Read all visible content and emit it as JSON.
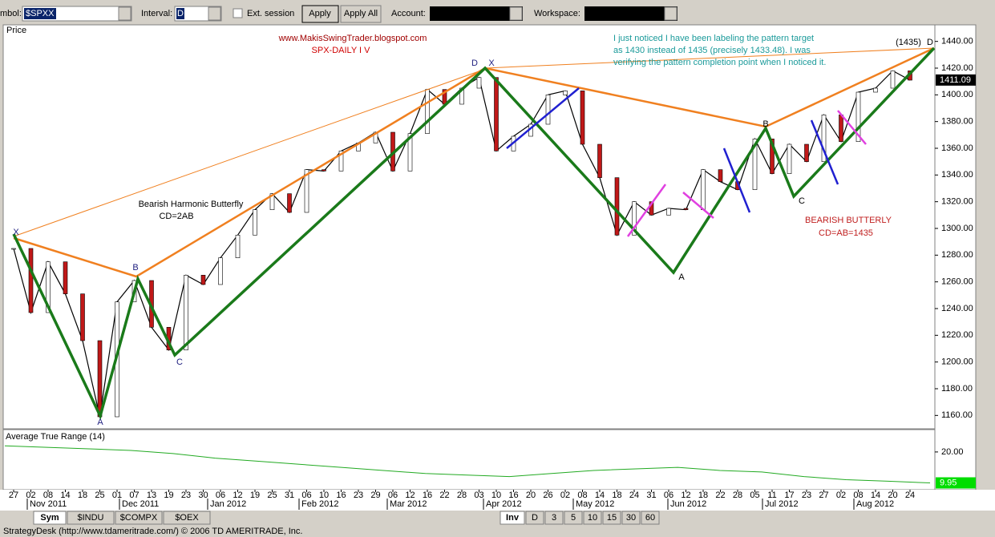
{
  "toolbar": {
    "symbol_label": "mbol:",
    "symbol": "$SPXX",
    "interval_label": "Interval:",
    "interval": "D",
    "ext_session": "Ext. session",
    "apply": "Apply",
    "apply_all": "Apply All",
    "account_label": "Account:",
    "workspace_label": "Workspace:"
  },
  "chart_data": {
    "type": "line",
    "title": "Price",
    "x": [
      "27",
      "02",
      "08",
      "14",
      "18",
      "25",
      "01",
      "07",
      "13",
      "19",
      "23",
      "30",
      "06",
      "12",
      "19",
      "25",
      "31",
      "06",
      "10",
      "16",
      "23",
      "29",
      "06",
      "12",
      "16",
      "22",
      "28",
      "03",
      "10",
      "16",
      "20",
      "26",
      "02",
      "08",
      "14",
      "18",
      "24",
      "31",
      "06",
      "12",
      "18",
      "22",
      "28",
      "05",
      "11",
      "17",
      "23",
      "27",
      "02",
      "08",
      "14",
      "20",
      "24"
    ],
    "months": [
      "Nov 2011",
      "Dec 2011",
      "Jan 2012",
      "Feb 2012",
      "Mar 2012",
      "Apr 2012",
      "May 2012",
      "Jun 2012",
      "Jul 2012",
      "Aug 2012"
    ],
    "series": [
      {
        "name": "SPX",
        "color": "#000000",
        "values": [
          1285,
          1237,
          1275,
          1251,
          1216,
          1159,
          1245,
          1261,
          1226,
          1209,
          1265,
          1258,
          1278,
          1295,
          1314,
          1326,
          1312,
          1344,
          1343,
          1358,
          1364,
          1372,
          1343,
          1371,
          1404,
          1393,
          1405,
          1413,
          1358,
          1369,
          1378,
          1400,
          1403,
          1363,
          1338,
          1295,
          1320,
          1310,
          1315,
          1314,
          1344,
          1335,
          1329,
          1367,
          1341,
          1363,
          1350,
          1385,
          1365,
          1402,
          1405,
          1418,
          1411
        ]
      }
    ],
    "ylim": [
      1150,
      1450
    ],
    "yticks": [
      {
        "value": 1160,
        "label": "1160.00"
      },
      {
        "value": 1180,
        "label": "1180.00"
      },
      {
        "value": 1200,
        "label": "1200.00"
      },
      {
        "value": 1220,
        "label": "1220.00"
      },
      {
        "value": 1240,
        "label": "1240.00"
      },
      {
        "value": 1260,
        "label": "1260.00"
      },
      {
        "value": 1280,
        "label": "1280.00"
      },
      {
        "value": 1300,
        "label": "1300.00"
      },
      {
        "value": 1320,
        "label": "1320.00"
      },
      {
        "value": 1340,
        "label": "1340.00"
      },
      {
        "value": 1360,
        "label": "1360.00"
      },
      {
        "value": 1380,
        "label": "1380.00"
      },
      {
        "value": 1400,
        "label": "1400.00"
      },
      {
        "value": 1420,
        "label": "1420.00"
      },
      {
        "value": 1440,
        "label": "1440.00"
      }
    ],
    "last_price": {
      "value": 1411.09,
      "label": "1411.09"
    },
    "annotations": {
      "site": "www.MakisSwingTrader.blogspot.com",
      "name": "SPX-DAILY I V",
      "note": [
        "I just noticed I have been labeling the pattern target",
        "as 1430 instead of 1435 (precisely 1433.48). I was",
        "verifying the pattern completion point when I noticed it."
      ],
      "pattern1": [
        "Bearish Harmonic Butterfly",
        "CD=2AB"
      ],
      "pattern2": [
        "BEARISH BUTTERLY",
        "CD=AB=1435"
      ],
      "target": "(1435)",
      "points": [
        "X",
        "A",
        "B",
        "C",
        "D",
        "X",
        "A",
        "B",
        "C",
        "D"
      ]
    }
  },
  "atr": {
    "title": "Average True Range (14)",
    "color": "#22aa22",
    "values": [
      22,
      21.5,
      21,
      20.5,
      19.5,
      18,
      17,
      16,
      15,
      14,
      13,
      12.5,
      12,
      13,
      14,
      14.5,
      15,
      14,
      13.5,
      12,
      11,
      10.5,
      9.95
    ],
    "ylim": [
      8,
      27
    ],
    "yticks": [
      {
        "value": 20,
        "label": "20.00"
      }
    ],
    "last": {
      "value": 9.95,
      "label": "9.95"
    }
  },
  "tabs": [
    "Sym",
    "$INDU",
    "$COMPX",
    "$OEX"
  ],
  "intervals": [
    "Inv",
    "D",
    "3",
    "5",
    "10",
    "15",
    "30",
    "60"
  ],
  "status": "StrategyDesk (http://www.tdameritrade.com/) © 2006 TD AMERITRADE, Inc."
}
